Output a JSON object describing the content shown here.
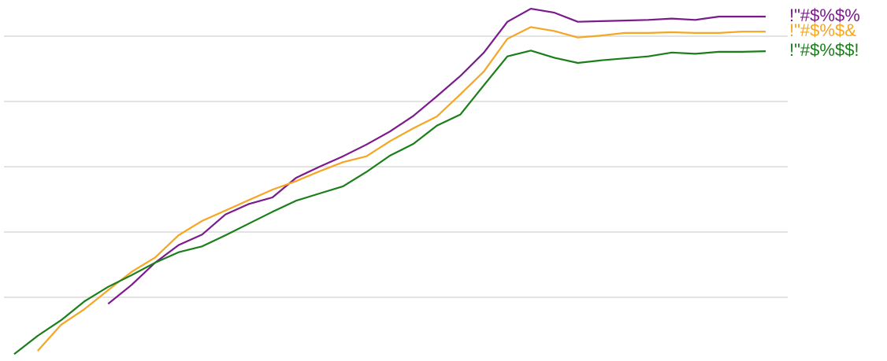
{
  "chart_data": {
    "type": "line",
    "categories": [
      null,
      null,
      null,
      null,
      null,
      null,
      null,
      null,
      null,
      null,
      null,
      null,
      null,
      null,
      null,
      null,
      null,
      null,
      null,
      null,
      null,
      null,
      null,
      null,
      null,
      null,
      null,
      null,
      null,
      null,
      null,
      null,
      null
    ],
    "series": [
      {
        "name": "!\"#$%$%",
        "color": "#7b1a8c",
        "values": [
          null,
          null,
          null,
          null,
          0.9,
          1.19,
          1.53,
          1.8,
          1.96,
          2.27,
          2.43,
          2.53,
          2.83,
          3.0,
          3.16,
          3.34,
          3.54,
          3.78,
          4.08,
          4.39,
          4.75,
          5.22,
          5.42,
          5.36,
          5.22,
          5.23,
          5.24,
          5.25,
          5.27,
          5.25,
          5.3,
          5.3,
          5.3
        ]
      },
      {
        "name": "!\"#$%$&",
        "color": "#f5a623",
        "values": [
          null,
          0.18,
          0.58,
          0.82,
          1.11,
          1.39,
          1.61,
          1.95,
          2.17,
          2.33,
          2.49,
          2.65,
          2.78,
          2.93,
          3.07,
          3.16,
          3.39,
          3.59,
          3.77,
          4.11,
          4.46,
          4.96,
          5.14,
          5.08,
          4.98,
          5.01,
          5.05,
          5.05,
          5.06,
          5.05,
          5.05,
          5.07,
          5.07
        ]
      },
      {
        "name": "!\"#$%$$!",
        "color": "#1a7f1a",
        "values": [
          0.13,
          0.41,
          0.65,
          0.94,
          1.16,
          1.34,
          1.53,
          1.69,
          1.78,
          1.95,
          2.13,
          2.31,
          2.48,
          2.59,
          2.7,
          2.92,
          3.17,
          3.35,
          3.63,
          3.8,
          4.25,
          4.69,
          4.78,
          4.67,
          4.59,
          4.63,
          4.66,
          4.69,
          4.75,
          4.73,
          4.76,
          4.76,
          4.77
        ]
      }
    ],
    "ylim": [
      0,
      5.5
    ],
    "yticks": [
      1,
      2,
      3,
      4,
      5
    ],
    "grid": true
  }
}
